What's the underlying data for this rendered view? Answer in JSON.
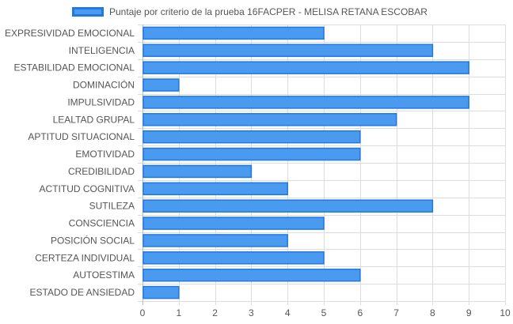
{
  "chart_data": {
    "type": "bar",
    "orientation": "horizontal",
    "categories": [
      "EXPRESIVIDAD EMOCIONAL",
      "INTELIGENCIA",
      "ESTABILIDAD EMOCIONAL",
      "DOMINACIÓN",
      "IMPULSIVIDAD",
      "LEALTAD GRUPAL",
      "APTITUD SITUACIONAL",
      "EMOTIVIDAD",
      "CREDIBILIDAD",
      "ACTITUD COGNITIVA",
      "SUTILEZA",
      "CONSCIENCIA",
      "POSICIÓN SOCIAL",
      "CERTEZA INDIVIDUAL",
      "AUTOESTIMA",
      "ESTADO DE ANSIEDAD"
    ],
    "series": [
      {
        "name": "Puntaje por criterio de la prueba 16FACPER - MELISA RETANA ESCOBAR",
        "values": [
          5,
          8,
          9,
          1,
          9,
          7,
          6,
          6,
          3,
          4,
          8,
          5,
          4,
          5,
          6,
          1
        ]
      }
    ],
    "xlim": [
      0,
      10
    ],
    "xticks": [
      "0",
      "1",
      "2",
      "3",
      "4",
      "5",
      "6",
      "7",
      "8",
      "9",
      "10"
    ],
    "grid": true,
    "legend_position": "top",
    "colors": {
      "bar_fill": "#4a9bf0",
      "bar_border": "#1f78e5",
      "grid": "#dddddd",
      "axis_text": "#555555"
    }
  }
}
